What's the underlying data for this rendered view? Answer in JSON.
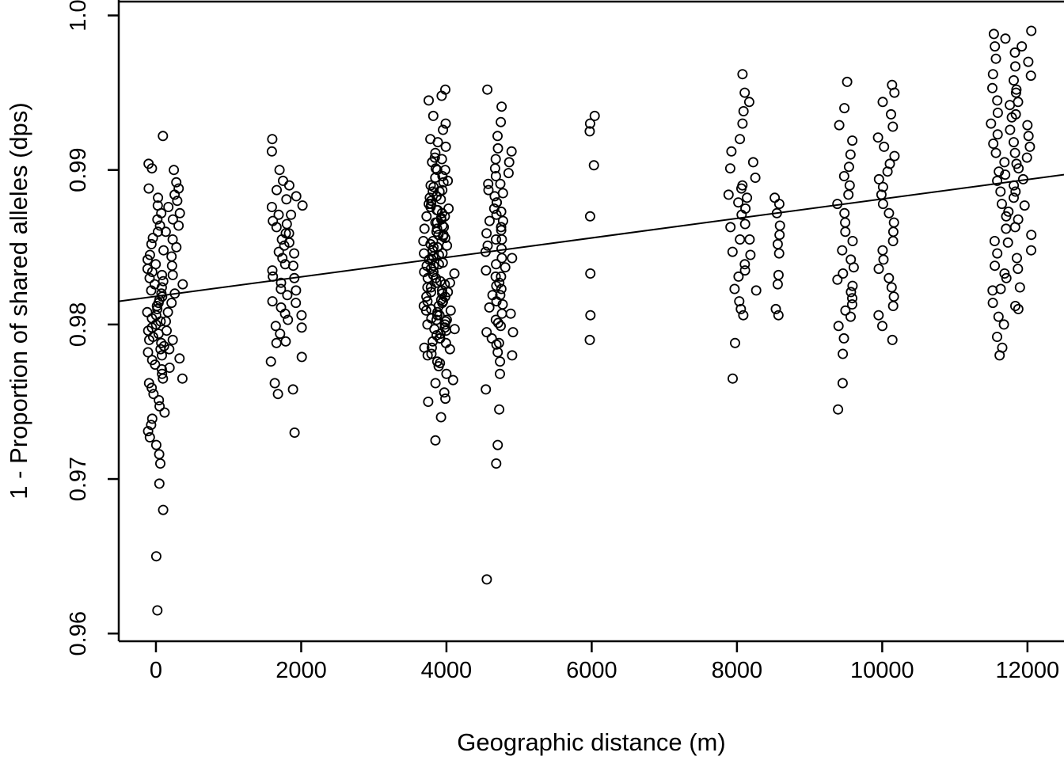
{
  "figure": {
    "background_color": "#ffffff",
    "foreground_color": "#000000"
  },
  "chart_data": {
    "type": "scatter",
    "title": "",
    "xlabel": "Geographic distance (m)",
    "ylabel": "1 - Proportion of shared alleles (dps)",
    "xlim": [
      -512,
      12503
    ],
    "ylim": [
      0.9595,
      1.001
    ],
    "grid": false,
    "legend": "none",
    "marker": "open-circle",
    "marker_color": "#000000",
    "xticks": [
      0,
      2000,
      4000,
      6000,
      8000,
      10000,
      12000
    ],
    "xtick_labels": [
      "0",
      "2000",
      "4000",
      "6000",
      "8000",
      "10000",
      "12000"
    ],
    "yticks": [
      0.96,
      0.97,
      0.98,
      0.99,
      1.0
    ],
    "ytick_labels": [
      "0.96",
      "0.97",
      "0.98",
      "0.99",
      "1.0"
    ],
    "trend_line": {
      "x1": -512,
      "y1": 0.9815,
      "x2": 12503,
      "y2": 0.9897
    },
    "clusters": [
      {
        "x": 0,
        "y": [
          0.9615,
          0.965,
          0.968,
          0.9697,
          0.971,
          0.9716,
          0.9722,
          0.9727,
          0.9731,
          0.9735,
          0.9739,
          0.9743,
          0.9747,
          0.9751,
          0.9755,
          0.9759,
          0.9762,
          0.9765,
          0.9768,
          0.9771,
          0.9774,
          0.9777,
          0.978,
          0.9782,
          0.9784,
          0.9786,
          0.9788,
          0.979,
          0.9792,
          0.9794,
          0.9796,
          0.9798,
          0.98,
          0.9802,
          0.9804,
          0.9806,
          0.9808,
          0.981,
          0.9812,
          0.9814,
          0.9816,
          0.9818,
          0.982,
          0.9822,
          0.9824,
          0.9826,
          0.9828,
          0.983,
          0.9832,
          0.9834,
          0.9836,
          0.9839,
          0.9842,
          0.9845,
          0.9848,
          0.9852,
          0.9856,
          0.986,
          0.9864,
          0.9868,
          0.9872,
          0.9877,
          0.9882,
          0.9888,
          0.9901,
          0.9904,
          0.9922
        ]
      },
      {
        "x": 250,
        "y": [
          0.9765,
          0.9772,
          0.9778,
          0.9784,
          0.979,
          0.9796,
          0.9802,
          0.9808,
          0.9814,
          0.982,
          0.9826,
          0.9832,
          0.9838,
          0.9844,
          0.985,
          0.9855,
          0.986,
          0.9864,
          0.9868,
          0.9872,
          0.9876,
          0.988,
          0.9884,
          0.9888,
          0.9892,
          0.99
        ]
      },
      {
        "x": 1700,
        "y": [
          0.9755,
          0.9762,
          0.9776,
          0.9788,
          0.9794,
          0.9799,
          0.9803,
          0.9807,
          0.9811,
          0.9815,
          0.9819,
          0.9823,
          0.9827,
          0.9831,
          0.9835,
          0.9839,
          0.9843,
          0.9847,
          0.9851,
          0.9855,
          0.9859,
          0.9863,
          0.9867,
          0.9871,
          0.9876,
          0.9881,
          0.9887,
          0.9893,
          0.99,
          0.9912,
          0.992
        ]
      },
      {
        "x": 1900,
        "y": [
          0.973,
          0.9758,
          0.9779,
          0.9789,
          0.9798,
          0.9806,
          0.9814,
          0.9822,
          0.983,
          0.9838,
          0.9846,
          0.9853,
          0.9859,
          0.9865,
          0.9871,
          0.9877,
          0.9883,
          0.989
        ]
      },
      {
        "x": 3800,
        "y": [
          0.9725,
          0.975,
          0.9762,
          0.9773,
          0.978,
          0.9785,
          0.9789,
          0.9793,
          0.9797,
          0.98,
          0.9803,
          0.9806,
          0.9809,
          0.9812,
          0.9815,
          0.9818,
          0.9821,
          0.9824,
          0.9827,
          0.983,
          0.9834,
          0.9838,
          0.9842,
          0.9846,
          0.985,
          0.9854,
          0.9858,
          0.9862,
          0.9866,
          0.987,
          0.9874,
          0.9878,
          0.9882,
          0.9886,
          0.989,
          0.9895,
          0.9901,
          0.9908,
          0.992,
          0.9945
        ]
      },
      {
        "x": 3900,
        "y": [
          0.974,
          0.9756,
          0.9768,
          0.9776,
          0.9781,
          0.9785,
          0.9788,
          0.9791,
          0.9794,
          0.9796,
          0.9798,
          0.98,
          0.9802,
          0.9804,
          0.9806,
          0.9808,
          0.981,
          0.9812,
          0.9814,
          0.9816,
          0.9818,
          0.982,
          0.9822,
          0.9824,
          0.9826,
          0.9828,
          0.983,
          0.9832,
          0.9834,
          0.9836,
          0.9838,
          0.984,
          0.9842,
          0.9844,
          0.9846,
          0.9848,
          0.985,
          0.9852,
          0.9854,
          0.9856,
          0.9858,
          0.986,
          0.9862,
          0.9864,
          0.9866,
          0.9868,
          0.987,
          0.9872,
          0.9874,
          0.9876,
          0.9878,
          0.988,
          0.9883,
          0.9886,
          0.9889,
          0.9892,
          0.9896,
          0.99,
          0.9905,
          0.9911,
          0.9918,
          0.9926,
          0.9935,
          0.9948,
          0.9952
        ]
      },
      {
        "x": 4000,
        "y": [
          0.9752,
          0.9764,
          0.9775,
          0.9784,
          0.9791,
          0.9797,
          0.9803,
          0.9809,
          0.9815,
          0.9821,
          0.9827,
          0.9833,
          0.9839,
          0.9845,
          0.9851,
          0.9857,
          0.9863,
          0.9869,
          0.9875,
          0.9881,
          0.9887,
          0.9893,
          0.99,
          0.9907,
          0.9915,
          0.993
        ]
      },
      {
        "x": 4650,
        "y": [
          0.9635,
          0.971,
          0.9722,
          0.9745,
          0.9758,
          0.9768,
          0.9776,
          0.9782,
          0.9787,
          0.9791,
          0.9795,
          0.9799,
          0.9803,
          0.9807,
          0.9811,
          0.9815,
          0.9819,
          0.9823,
          0.9827,
          0.9831,
          0.9835,
          0.9839,
          0.9843,
          0.9847,
          0.9851,
          0.9855,
          0.9859,
          0.9863,
          0.9867,
          0.9871,
          0.9875,
          0.9879,
          0.9883,
          0.9887,
          0.9891,
          0.9896,
          0.9901,
          0.9907,
          0.9914,
          0.9922,
          0.9931,
          0.9941,
          0.9952
        ]
      },
      {
        "x": 4800,
        "y": [
          0.978,
          0.9788,
          0.9795,
          0.9801,
          0.9807,
          0.9813,
          0.9819,
          0.9825,
          0.9831,
          0.9837,
          0.9843,
          0.9849,
          0.9855,
          0.9861,
          0.9867,
          0.9873,
          0.9879,
          0.9885,
          0.9891,
          0.9898,
          0.9905,
          0.9912
        ]
      },
      {
        "x": 6000,
        "y": [
          0.979,
          0.9806,
          0.9833,
          0.987,
          0.9903,
          0.9925,
          0.993,
          0.9935
        ]
      },
      {
        "x": 8000,
        "y": [
          0.9765,
          0.9788,
          0.9806,
          0.9815,
          0.9823,
          0.9831,
          0.9839,
          0.9847,
          0.9855,
          0.9863,
          0.9871,
          0.9879,
          0.9884,
          0.989,
          0.9901,
          0.9912,
          0.993,
          0.9938
        ]
      },
      {
        "x": 8150,
        "y": [
          0.981,
          0.9822,
          0.9835,
          0.9845,
          0.9855,
          0.9865,
          0.9875,
          0.9882,
          0.9888,
          0.9895,
          0.9905,
          0.992,
          0.9944,
          0.995,
          0.9962
        ]
      },
      {
        "x": 8550,
        "y": [
          0.9806,
          0.981,
          0.9826,
          0.9832,
          0.9846,
          0.9852,
          0.9858,
          0.9864,
          0.9872,
          0.9878,
          0.9882
        ]
      },
      {
        "x": 9500,
        "y": [
          0.9745,
          0.9762,
          0.9781,
          0.9791,
          0.9799,
          0.9805,
          0.9809,
          0.9813,
          0.9817,
          0.9821,
          0.9825,
          0.9829,
          0.9833,
          0.9837,
          0.9842,
          0.9848,
          0.9854,
          0.986,
          0.9866,
          0.9872,
          0.9878,
          0.9884,
          0.989,
          0.9896,
          0.9902,
          0.991,
          0.9919,
          0.9929,
          0.994,
          0.9957
        ]
      },
      {
        "x": 10050,
        "y": [
          0.979,
          0.9799,
          0.9806,
          0.9812,
          0.9818,
          0.9824,
          0.983,
          0.9836,
          0.9842,
          0.9848,
          0.9854,
          0.986,
          0.9866,
          0.9872,
          0.9878,
          0.9884,
          0.9889,
          0.9894,
          0.9899,
          0.9904,
          0.9909,
          0.9915,
          0.9921,
          0.9928,
          0.9936,
          0.9944,
          0.995,
          0.9955
        ]
      },
      {
        "x": 11600,
        "y": [
          0.978,
          0.9792,
          0.9805,
          0.9814,
          0.9822,
          0.983,
          0.9838,
          0.9846,
          0.9854,
          0.9862,
          0.987,
          0.9878,
          0.9886,
          0.9893,
          0.9899,
          0.9905,
          0.9911,
          0.9917,
          0.9923,
          0.993,
          0.9937,
          0.9945,
          0.9953,
          0.9962,
          0.9972,
          0.998,
          0.9988
        ]
      },
      {
        "x": 11750,
        "y": [
          0.9785,
          0.98,
          0.9812,
          0.9823,
          0.9833,
          0.9843,
          0.9853,
          0.9863,
          0.9873,
          0.9882,
          0.989,
          0.9897,
          0.9904,
          0.9911,
          0.9918,
          0.9926,
          0.9934,
          0.9942,
          0.995,
          0.9958,
          0.9967,
          0.9976,
          0.9985
        ]
      },
      {
        "x": 11950,
        "y": [
          0.981,
          0.9824,
          0.9836,
          0.9848,
          0.9858,
          0.9868,
          0.9877,
          0.9886,
          0.9894,
          0.9901,
          0.9908,
          0.9915,
          0.9922,
          0.9929,
          0.9936,
          0.9944,
          0.9952,
          0.9961,
          0.997,
          0.998,
          0.999
        ]
      }
    ]
  }
}
